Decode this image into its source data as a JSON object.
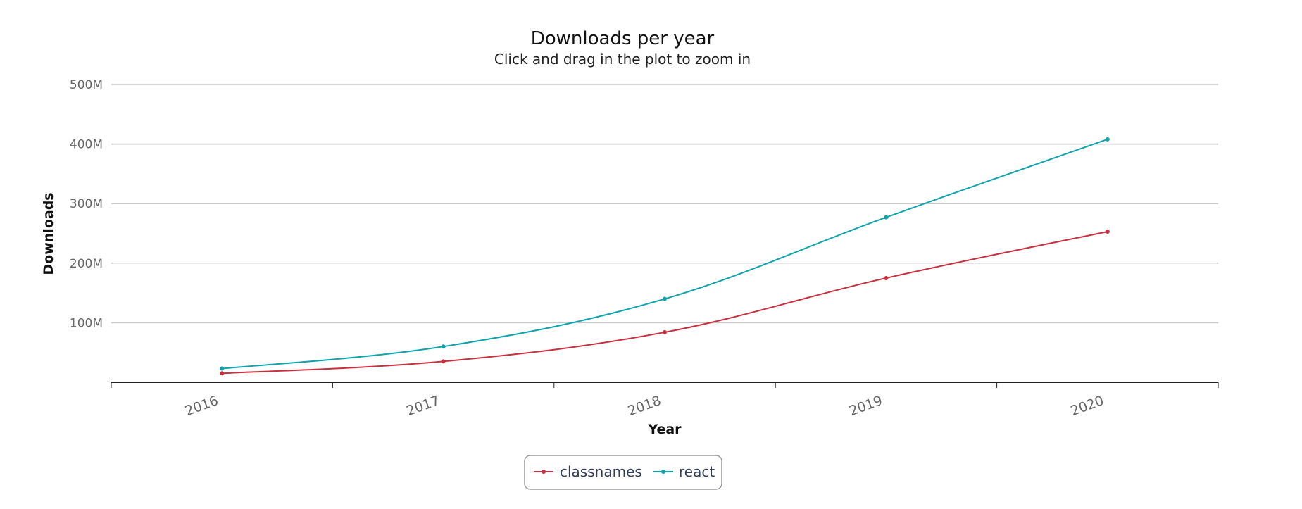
{
  "chart_data": {
    "type": "line",
    "title": "Downloads per year",
    "subtitle": "Click and drag in the plot to zoom in",
    "xlabel": "Year",
    "ylabel": "Downloads",
    "categories": [
      "2016",
      "2017",
      "2018",
      "2019",
      "2020"
    ],
    "ylim": [
      0,
      500000000
    ],
    "yticks": [
      100000000,
      200000000,
      300000000,
      400000000,
      500000000
    ],
    "ytick_labels": [
      "100M",
      "200M",
      "300M",
      "400M",
      "500M"
    ],
    "grid": true,
    "legend_position": "bottom-center",
    "series": [
      {
        "name": "classnames",
        "color": "#c7303e",
        "values": [
          15000000,
          35000000,
          84000000,
          175000000,
          253000000
        ]
      },
      {
        "name": "react",
        "color": "#0fa4ad",
        "values": [
          23000000,
          60000000,
          140000000,
          277000000,
          408000000
        ]
      }
    ]
  }
}
